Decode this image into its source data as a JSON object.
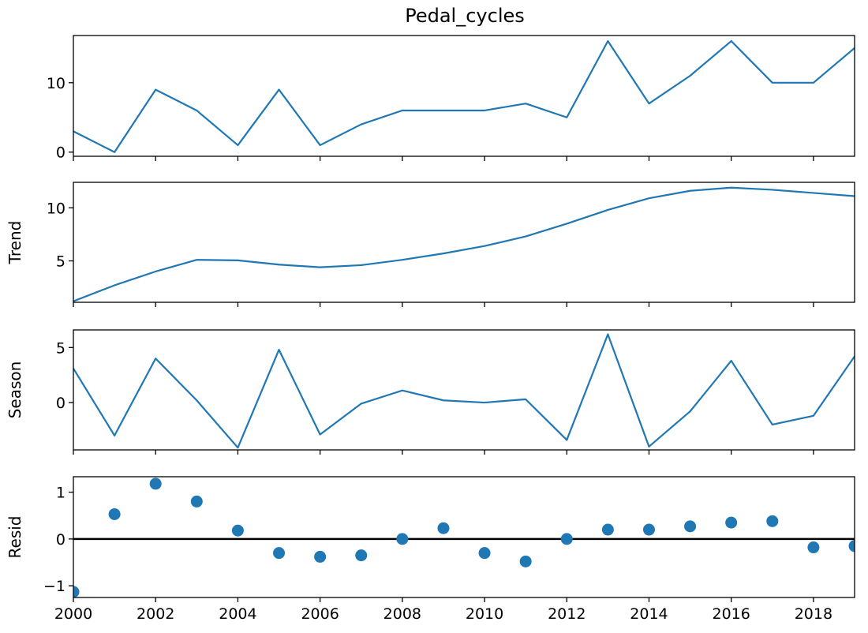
{
  "chart_data": {
    "type": "line",
    "title": "Pedal_cycles",
    "x": [
      2000,
      2001,
      2002,
      2003,
      2004,
      2005,
      2006,
      2007,
      2008,
      2009,
      2010,
      2011,
      2012,
      2013,
      2014,
      2015,
      2016,
      2017,
      2018,
      2019
    ],
    "xlim": [
      2000,
      2019
    ],
    "xticks": [
      "2000",
      "2002",
      "2004",
      "2006",
      "2008",
      "2010",
      "2012",
      "2014",
      "2016",
      "2018"
    ],
    "panels": [
      {
        "ylabel": "",
        "kind": "line",
        "ylim": [
          -0.6,
          16.8
        ],
        "yticks": [
          0,
          10
        ],
        "ytick_labels": [
          "0",
          "10"
        ],
        "values": [
          3,
          0,
          9,
          6,
          1,
          9,
          1,
          4,
          6,
          6,
          6,
          7,
          5,
          16,
          7,
          11,
          16,
          10,
          10,
          15
        ]
      },
      {
        "ylabel": "Trend",
        "kind": "line",
        "ylim": [
          1.1,
          12.4
        ],
        "yticks": [
          5,
          10
        ],
        "ytick_labels": [
          "5",
          "10"
        ],
        "values": [
          1.2,
          2.7,
          4.0,
          5.1,
          5.05,
          4.65,
          4.4,
          4.6,
          5.1,
          5.7,
          6.4,
          7.3,
          8.5,
          9.8,
          10.9,
          11.6,
          11.9,
          11.7,
          11.4,
          11.1
        ]
      },
      {
        "ylabel": "Season",
        "kind": "line",
        "ylim": [
          -4.3,
          6.6
        ],
        "yticks": [
          0,
          5
        ],
        "ytick_labels": [
          "0",
          "5"
        ],
        "values": [
          3.1,
          -3.0,
          4.0,
          0.2,
          -4.1,
          4.8,
          -2.9,
          -0.1,
          1.1,
          0.2,
          0.0,
          0.3,
          -3.4,
          6.2,
          -4.0,
          -0.8,
          3.8,
          -2.0,
          -1.2,
          4.2
        ]
      },
      {
        "ylabel": "Resid",
        "kind": "scatter",
        "ylim": [
          -1.25,
          1.33
        ],
        "yticks": [
          -1,
          0,
          1
        ],
        "ytick_labels": [
          "−1",
          "0",
          "1"
        ],
        "zero_line": true,
        "values": [
          -1.13,
          0.53,
          1.18,
          0.8,
          0.18,
          -0.3,
          -0.38,
          -0.35,
          0.0,
          0.23,
          -0.3,
          -0.48,
          0.0,
          0.2,
          0.2,
          0.27,
          0.35,
          0.38,
          -0.18,
          -0.15
        ]
      }
    ]
  }
}
